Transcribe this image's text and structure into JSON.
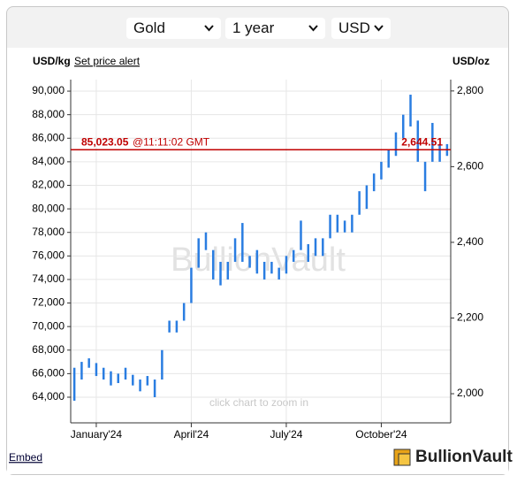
{
  "controls": {
    "metal": "Gold",
    "period": "1 year",
    "currency": "USD"
  },
  "header": {
    "left_unit": "USD/kg",
    "alert_link": "Set price alert",
    "right_unit": "USD/oz"
  },
  "watermark": "BullionVault",
  "hint": "click chart to zoom in",
  "footer": {
    "embed": "Embed",
    "brand": "BullionVault"
  },
  "chart_data": {
    "type": "range",
    "color": "#2a7de1",
    "grid": true,
    "categories": [
      null,
      null,
      null,
      "January'24",
      null,
      null,
      null,
      null,
      null,
      null,
      null,
      null,
      null,
      null,
      null,
      null,
      "April'24",
      null,
      null,
      null,
      null,
      null,
      null,
      null,
      null,
      null,
      null,
      null,
      null,
      "July'24",
      null,
      null,
      null,
      null,
      null,
      null,
      null,
      null,
      null,
      null,
      null,
      null,
      "October'24",
      null,
      null,
      null,
      null,
      null,
      null,
      null,
      null,
      null
    ],
    "low": [
      63700,
      65500,
      66500,
      65800,
      65500,
      65000,
      65200,
      65500,
      65000,
      64500,
      65000,
      64000,
      65500,
      69500,
      69500,
      70500,
      72000,
      75000,
      76500,
      74000,
      73500,
      74000,
      75500,
      75500,
      75000,
      74500,
      74000,
      74500,
      74000,
      74500,
      75500,
      76500,
      75500,
      76000,
      76000,
      77500,
      78000,
      78000,
      78000,
      79500,
      80000,
      81500,
      82500,
      83500,
      84500,
      86000,
      87000,
      84000,
      81500,
      84000,
      84000,
      84500
    ],
    "high": [
      66500,
      67000,
      67300,
      66900,
      66500,
      66200,
      66000,
      66500,
      65900,
      65500,
      65800,
      65500,
      68000,
      70500,
      70500,
      72000,
      75000,
      77500,
      78000,
      76500,
      75500,
      75500,
      77500,
      78800,
      76000,
      76500,
      75500,
      75500,
      75000,
      76000,
      76500,
      79000,
      77000,
      77500,
      77500,
      79500,
      79500,
      79000,
      79500,
      81500,
      82000,
      83000,
      84000,
      85000,
      86500,
      88000,
      89700,
      87500,
      84000,
      87300,
      85500,
      85500
    ],
    "ylim": [
      61820,
      90980
    ],
    "yticks": [
      {
        "value": 64000,
        "label": "64,000"
      },
      {
        "value": 66000,
        "label": "66,000"
      },
      {
        "value": 68000,
        "label": "68,000"
      },
      {
        "value": 70000,
        "label": "70,000"
      },
      {
        "value": 72000,
        "label": "72,000"
      },
      {
        "value": 74000,
        "label": "74,000"
      },
      {
        "value": 76000,
        "label": "76,000"
      },
      {
        "value": 78000,
        "label": "78,000"
      },
      {
        "value": 80000,
        "label": "80,000"
      },
      {
        "value": 82000,
        "label": "82,000"
      },
      {
        "value": 84000,
        "label": "84,000"
      },
      {
        "value": 86000,
        "label": "86,000"
      },
      {
        "value": 88000,
        "label": "88,000"
      },
      {
        "value": 90000,
        "label": "90,000"
      }
    ],
    "y2lim": [
      1923,
      2830
    ],
    "y2ticks": [
      {
        "value": 2000,
        "label": "2,000"
      },
      {
        "value": 2200,
        "label": "2,200"
      },
      {
        "value": 2400,
        "label": "2,400"
      },
      {
        "value": 2600,
        "label": "2,600"
      },
      {
        "value": 2800,
        "label": "2,800"
      }
    ],
    "price_line": {
      "value": 85023.05,
      "label": "85,023.05",
      "time": "@11:11:02 GMT",
      "color": "#c00000"
    },
    "price_oz": {
      "value": 2644.51,
      "label": "2,644.51"
    }
  }
}
